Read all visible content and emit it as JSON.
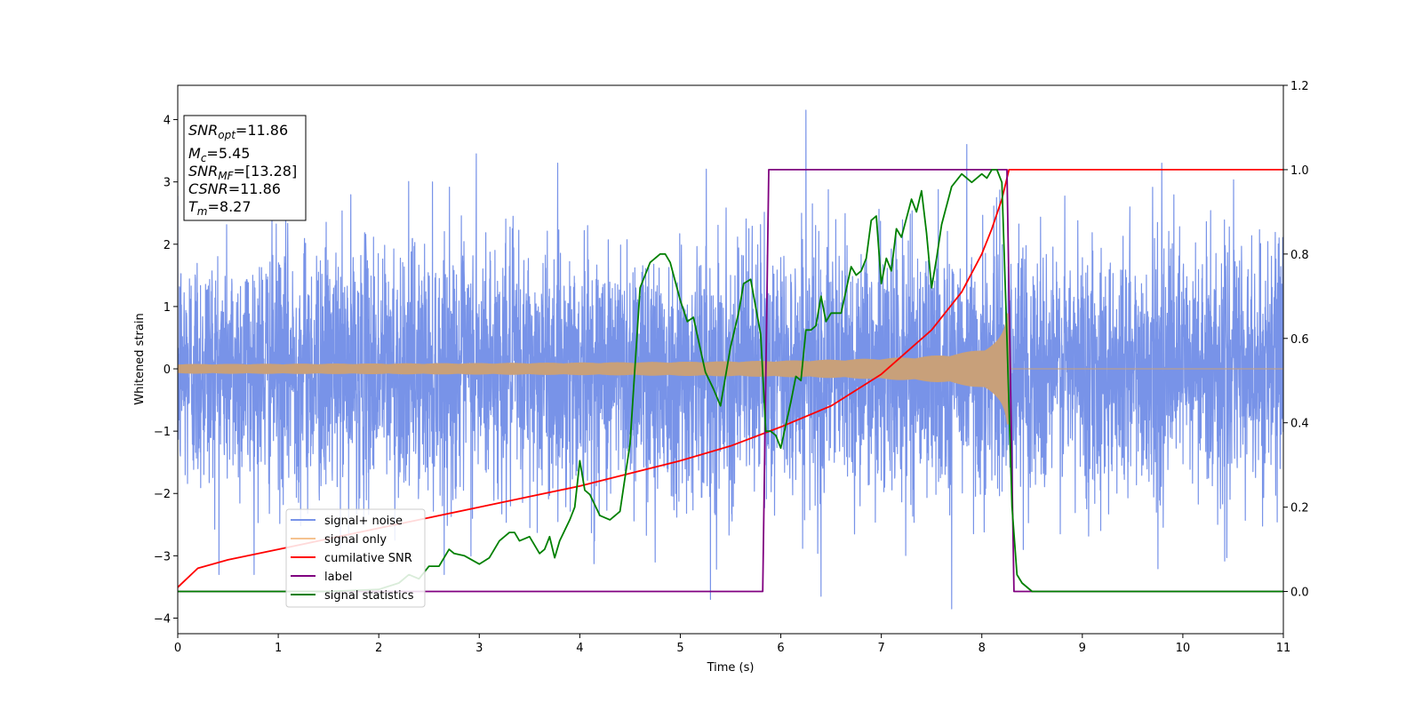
{
  "chart_data": {
    "type": "line",
    "xlabel": "Time (s)",
    "ylabel": "Whitened strain",
    "xlim": [
      0,
      11
    ],
    "ylim": [
      -4.25,
      4.55
    ],
    "y2lim": [
      -0.1,
      1.2
    ],
    "x_ticks": [
      "0",
      "1",
      "2",
      "3",
      "4",
      "5",
      "6",
      "7",
      "8",
      "9",
      "10",
      "11"
    ],
    "y_ticks": [
      "−4",
      "−3",
      "−2",
      "−1",
      "0",
      "1",
      "2",
      "3",
      "4"
    ],
    "y2_ticks": [
      "0.0",
      "0.2",
      "0.4",
      "0.6",
      "0.8",
      "1.0",
      "1.2"
    ],
    "info_box": {
      "snr_opt": {
        "base": "SNR",
        "sub": "opt",
        "value": "=11.86"
      },
      "mc": {
        "base": "M",
        "sub": "c",
        "value": "=5.45"
      },
      "snr_mf": {
        "base": "SNR",
        "sub": "MF",
        "value": "=[13.28]"
      },
      "csnr": {
        "base": "CSNR",
        "sub": "",
        "value": "=11.86"
      },
      "tm": {
        "base": "T",
        "sub": "m",
        "value": "=8.27"
      }
    },
    "legend": {
      "placement": "lower-left",
      "items": [
        {
          "label": "signal+ noise",
          "color": "#7893e8"
        },
        {
          "label": "signal only",
          "color": "#f5c28f"
        },
        {
          "label": "cumilative SNR",
          "color": "#ff0000"
        },
        {
          "label": "label",
          "color": "#800080"
        },
        {
          "label": "signal statistics",
          "color": "#008000"
        }
      ]
    },
    "series": [
      {
        "name": "signal+ noise",
        "axis": "left",
        "color": "#7893e8",
        "description_params": {
          "noise_sigma": 1.0,
          "duration": 11
        },
        "spikes": [
          [
            2.97,
            3.45
          ],
          [
            5.3,
            -3.7
          ],
          [
            6.25,
            4.15
          ],
          [
            6.4,
            -3.65
          ],
          [
            7.7,
            -3.85
          ],
          [
            7.85,
            3.6
          ],
          [
            4.75,
            -3.1
          ],
          [
            1.7,
            -2.8
          ]
        ]
      },
      {
        "name": "signal only",
        "axis": "left",
        "color": "#c8a07a",
        "envelope_start": 0.07,
        "t_merge": 8.27,
        "peak_amplitude": 0.9,
        "post_merge": 0.0
      },
      {
        "name": "cumilative SNR",
        "axis": "right",
        "color": "#ff0000",
        "x": [
          0,
          0.2,
          0.5,
          1,
          1.5,
          2,
          2.5,
          3,
          3.5,
          4,
          4.5,
          5,
          5.5,
          6,
          6.5,
          7,
          7.5,
          7.8,
          8.0,
          8.1,
          8.2,
          8.27,
          8.3,
          11
        ],
        "y": [
          0.01,
          0.055,
          0.075,
          0.1,
          0.125,
          0.15,
          0.175,
          0.2,
          0.225,
          0.25,
          0.28,
          0.31,
          0.345,
          0.39,
          0.44,
          0.515,
          0.62,
          0.71,
          0.8,
          0.86,
          0.93,
          1.0,
          1.0,
          1.0
        ]
      },
      {
        "name": "label",
        "axis": "right",
        "color": "#800080",
        "x": [
          0,
          5.82,
          5.88,
          8.25,
          8.32,
          11
        ],
        "y": [
          0,
          0,
          1,
          1,
          0,
          0
        ]
      },
      {
        "name": "signal statistics",
        "axis": "right",
        "color": "#008000",
        "x": [
          0,
          1.5,
          2.0,
          2.2,
          2.3,
          2.4,
          2.5,
          2.6,
          2.7,
          2.75,
          2.85,
          3.0,
          3.1,
          3.2,
          3.3,
          3.35,
          3.4,
          3.5,
          3.6,
          3.65,
          3.7,
          3.75,
          3.8,
          3.9,
          3.95,
          4.0,
          4.05,
          4.1,
          4.2,
          4.3,
          4.4,
          4.5,
          4.6,
          4.7,
          4.8,
          4.85,
          4.9,
          5.0,
          5.07,
          5.13,
          5.25,
          5.33,
          5.4,
          5.5,
          5.58,
          5.63,
          5.7,
          5.8,
          5.85,
          5.9,
          5.95,
          6.0,
          6.1,
          6.15,
          6.2,
          6.25,
          6.3,
          6.35,
          6.4,
          6.45,
          6.5,
          6.6,
          6.7,
          6.75,
          6.8,
          6.85,
          6.9,
          6.95,
          7.0,
          7.05,
          7.1,
          7.15,
          7.2,
          7.3,
          7.35,
          7.4,
          7.45,
          7.5,
          7.55,
          7.6,
          7.7,
          7.8,
          7.85,
          7.9,
          8.0,
          8.05,
          8.1,
          8.15,
          8.2,
          8.25,
          8.3,
          8.35,
          8.4,
          8.5,
          11
        ],
        "y": [
          0.0,
          0.0,
          0.005,
          0.02,
          0.04,
          0.03,
          0.06,
          0.06,
          0.1,
          0.09,
          0.085,
          0.065,
          0.08,
          0.12,
          0.14,
          0.14,
          0.12,
          0.13,
          0.09,
          0.1,
          0.13,
          0.08,
          0.12,
          0.17,
          0.2,
          0.31,
          0.24,
          0.23,
          0.18,
          0.17,
          0.19,
          0.35,
          0.72,
          0.78,
          0.8,
          0.8,
          0.78,
          0.69,
          0.64,
          0.65,
          0.52,
          0.48,
          0.44,
          0.58,
          0.66,
          0.73,
          0.74,
          0.61,
          0.38,
          0.38,
          0.37,
          0.34,
          0.45,
          0.51,
          0.5,
          0.62,
          0.62,
          0.63,
          0.7,
          0.64,
          0.66,
          0.66,
          0.77,
          0.75,
          0.76,
          0.79,
          0.88,
          0.89,
          0.73,
          0.79,
          0.76,
          0.86,
          0.84,
          0.93,
          0.9,
          0.95,
          0.85,
          0.72,
          0.79,
          0.87,
          0.96,
          0.99,
          0.98,
          0.97,
          0.99,
          0.98,
          1.0,
          1.0,
          0.97,
          0.6,
          0.2,
          0.04,
          0.02,
          0.0,
          0.0
        ]
      }
    ]
  }
}
